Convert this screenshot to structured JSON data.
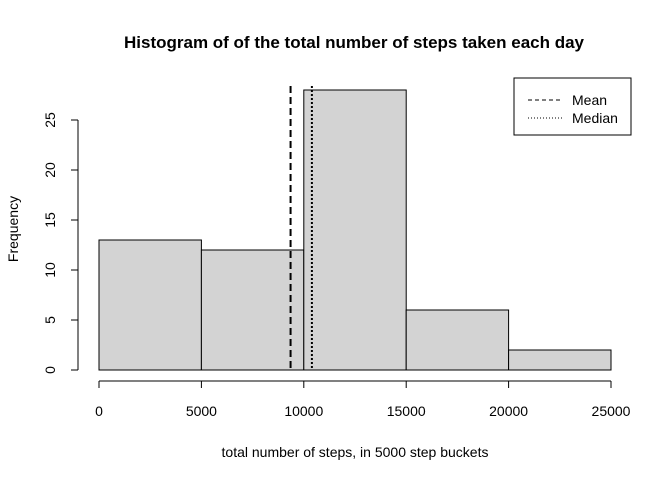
{
  "chart_data": {
    "type": "bar",
    "title": "Histogram of of the total number of steps taken each day",
    "xlabel": "total number of steps, in 5000 step buckets",
    "ylabel": "Frequency",
    "bins": [
      {
        "start": 0,
        "end": 5000,
        "count": 13
      },
      {
        "start": 5000,
        "end": 10000,
        "count": 12
      },
      {
        "start": 10000,
        "end": 15000,
        "count": 28
      },
      {
        "start": 15000,
        "end": 20000,
        "count": 6
      },
      {
        "start": 20000,
        "end": 25000,
        "count": 2
      }
    ],
    "xlim": [
      0,
      25000
    ],
    "ylim": [
      0,
      28
    ],
    "xticks": [
      0,
      5000,
      10000,
      15000,
      20000,
      25000
    ],
    "yticks": [
      0,
      5,
      10,
      15,
      20,
      25
    ],
    "reference_lines": [
      {
        "name": "Mean",
        "value": 9354,
        "style": "dashed"
      },
      {
        "name": "Median",
        "value": 10395,
        "style": "dotted"
      }
    ],
    "legend": [
      "Mean",
      "Median"
    ],
    "legend_position": "top-right",
    "bar_color": "#d3d3d3",
    "grid": false
  }
}
